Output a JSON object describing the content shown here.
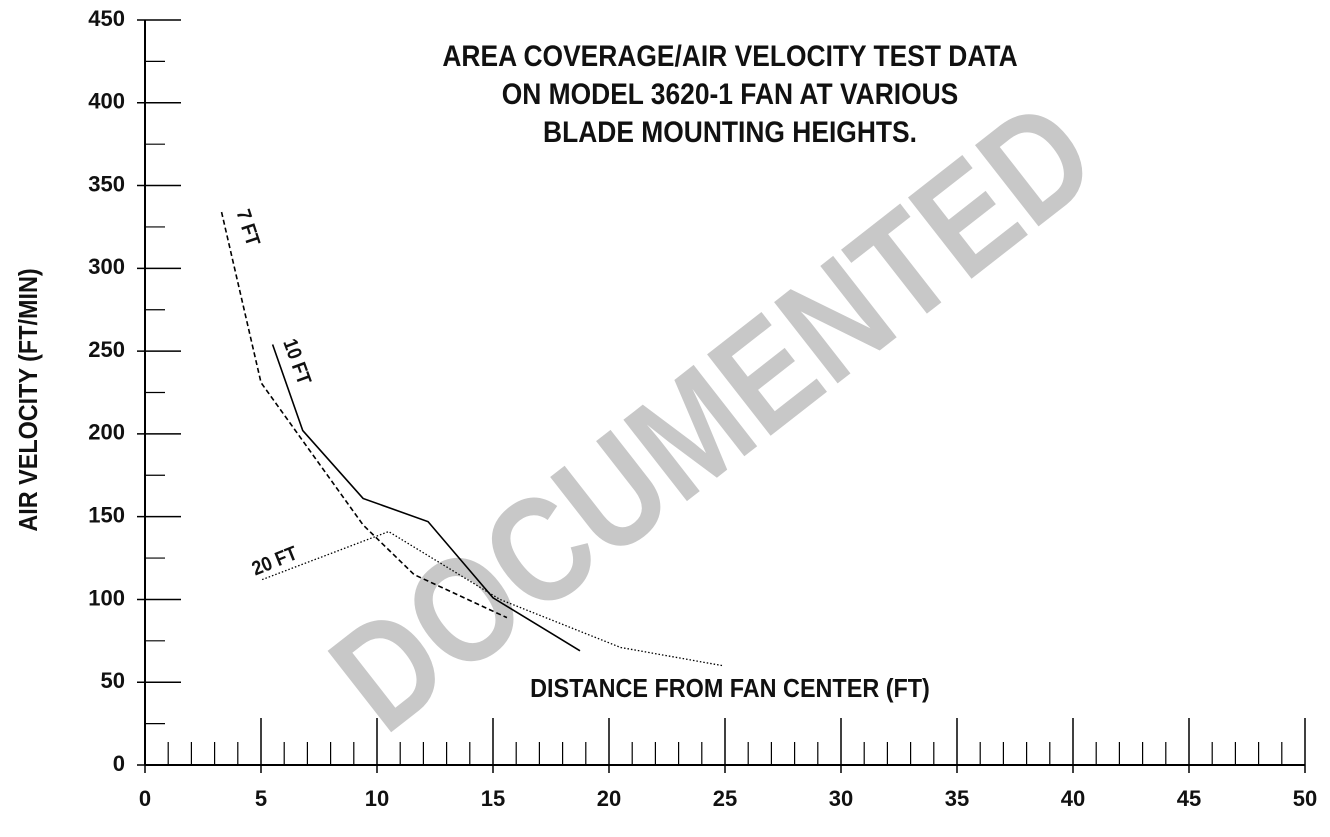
{
  "chart_data": {
    "type": "line",
    "title": [
      "AREA COVERAGE/AIR VELOCITY TEST DATA",
      "ON MODEL 3620-1 FAN AT VARIOUS",
      "BLADE MOUNTING HEIGHTS."
    ],
    "watermark": "DOCUMENTED",
    "xlabel": "DISTANCE FROM FAN CENTER (FT)",
    "ylabel": "AIR VELOCITY (FT/MIN)",
    "xlim": [
      0,
      50
    ],
    "ylim": [
      0,
      450
    ],
    "xticks": [
      0,
      5,
      10,
      15,
      20,
      25,
      30,
      35,
      40,
      45,
      50
    ],
    "yticks": [
      0,
      50,
      100,
      150,
      200,
      250,
      300,
      350,
      400,
      450
    ],
    "xminorticks": [
      1,
      2,
      3,
      4,
      6,
      7,
      8,
      9,
      11,
      12,
      13,
      14,
      16,
      17,
      18,
      19,
      21,
      22,
      23,
      24,
      26,
      27,
      28,
      29,
      31,
      32,
      33,
      34,
      36,
      37,
      38,
      39,
      41,
      42,
      43,
      44,
      46,
      47,
      48,
      49
    ],
    "yminorticks": [
      25,
      75,
      125,
      175,
      225,
      275,
      325,
      375,
      425
    ],
    "series": [
      {
        "name": "7 FT",
        "color": "#000000",
        "style": "dashed",
        "x": [
          3.3,
          5.0,
          9.4,
          11.6,
          15.6
        ],
        "values": [
          334,
          231,
          145,
          115,
          89
        ]
      },
      {
        "name": "10 FT",
        "color": "#000000",
        "style": "solid",
        "x": [
          5.5,
          6.8,
          9.4,
          12.2,
          15.0,
          18.75
        ],
        "values": [
          254,
          202,
          161,
          147,
          101,
          69
        ]
      },
      {
        "name": "20 FT",
        "color": "#000000",
        "style": "dotted",
        "x": [
          5.05,
          10.5,
          15.3,
          20.5,
          24.9
        ],
        "values": [
          112,
          141,
          100,
          71,
          60
        ]
      }
    ]
  }
}
